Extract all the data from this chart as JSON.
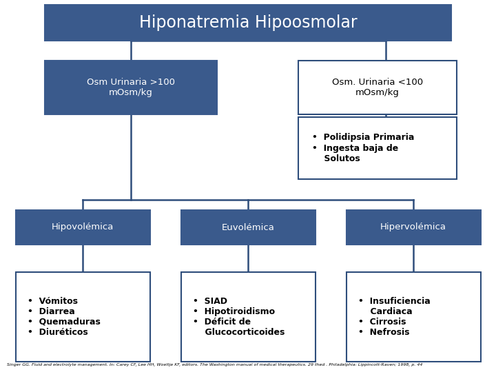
{
  "title": "Hiponatremia Hipoosmolar",
  "box_blue_bg": "#3A5A8C",
  "box_blue_fg": "#FFFFFF",
  "box_white_bg": "#FFFFFF",
  "box_white_fg": "#000000",
  "box_border": "#2E4D7B",
  "line_color": "#2E4D7B",
  "node_osm_high": "Osm Urinaria >100\nmOsm/kg",
  "node_osm_low": "Osm. Urinaria <100\nmOsm/kg",
  "node_osm_low_detail": "•  Polidipsia Primaria\n•  Ingesta baja de\n    Solutos",
  "node_hipo": "Hipovolémica",
  "node_eu": "Euvolémica",
  "node_hiper": "Hipervolémica",
  "node_hipo_detail": "•  Vómitos\n•  Diarrea\n•  Quemaduras\n•  Diuréticos",
  "node_eu_detail": "•  SIAD\n•  Hipotiroidismo\n•  Déficit de\n    Glucocorticoides",
  "node_hiper_detail": "•  Insuficiencia\n    Cardiaca\n•  Cirrosis\n•  Nefrosis",
  "footnote": "Singer GG. Fluid and electrolyte management. In: Carey CF, Lee HH, Woeltje KF, editors. The Washington manual of medical therapeutics. 29 thed . Philadelphia: Lippincott-Raven; 1998, p. 44",
  "bg_color": "#FFFFFF"
}
